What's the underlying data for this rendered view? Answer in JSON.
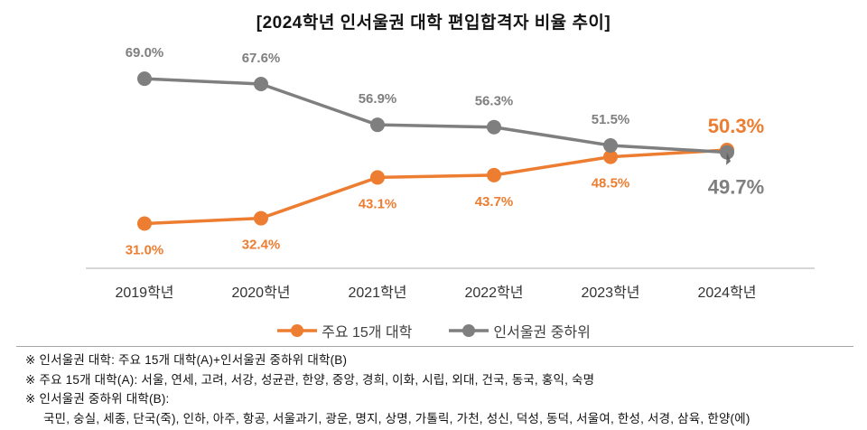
{
  "title": "[2024학년 인서울권 대학 편입합격자 비율 추이]",
  "chart_data": {
    "type": "line",
    "title": "[2024학년 인서울권 대학 편입합격자 비율 추이]",
    "categories": [
      "2019학년",
      "2020학년",
      "2021학년",
      "2022학년",
      "2023학년",
      "2024학년"
    ],
    "series": [
      {
        "name": "주요 15개 대학",
        "color": "#ED7D31",
        "values": [
          31.0,
          32.4,
          43.1,
          43.7,
          48.5,
          50.3
        ],
        "labels": [
          "31.0%",
          "32.4%",
          "43.1%",
          "43.7%",
          "48.5%",
          "50.3%"
        ],
        "label_positions": [
          "below",
          "below",
          "below",
          "below",
          "below",
          "above"
        ],
        "last_label_emphasis": true
      },
      {
        "name": "인서울권 중하위",
        "color": "#7F7F7F",
        "values": [
          69.0,
          67.6,
          56.9,
          56.3,
          51.5,
          49.7
        ],
        "labels": [
          "69.0%",
          "67.6%",
          "56.9%",
          "56.3%",
          "51.5%",
          "49.7%"
        ],
        "label_positions": [
          "above",
          "above",
          "above",
          "above",
          "above",
          "below"
        ],
        "last_label_emphasis": true
      }
    ],
    "xlabel": "",
    "ylabel": "",
    "ylim": [
      25,
      75
    ],
    "grid": false,
    "legend_position": "bottom",
    "marker": "circle-dot"
  },
  "footnotes": [
    "※ 인서울권 대학: 주요 15개 대학(A)+인서울권 중하위 대학(B)",
    "※ 주요 15개 대학(A): 서울, 연세, 고려, 서강, 성균관, 한양, 중앙, 경희, 이화, 시립, 외대, 건국, 동국, 홍익, 숙명",
    "※ 인서울권 중하위 대학(B):",
    "국민, 숭실, 세종, 단국(죽), 인하, 아주, 항공, 서울과기, 광운, 명지, 상명, 가톨릭, 가천, 성신, 덕성, 동덕, 서울여, 한성, 서경, 삼육, 한양(에)"
  ],
  "colors": {
    "axis_line": "#D6D6D6",
    "separator": "#A6A6A6",
    "tick_label": "#333333",
    "title_text": "#141414",
    "cursor": "#595959"
  },
  "icons": {
    "legend_marker": "line-dot-marker-icon",
    "cursor": "mouse-cursor-icon"
  }
}
